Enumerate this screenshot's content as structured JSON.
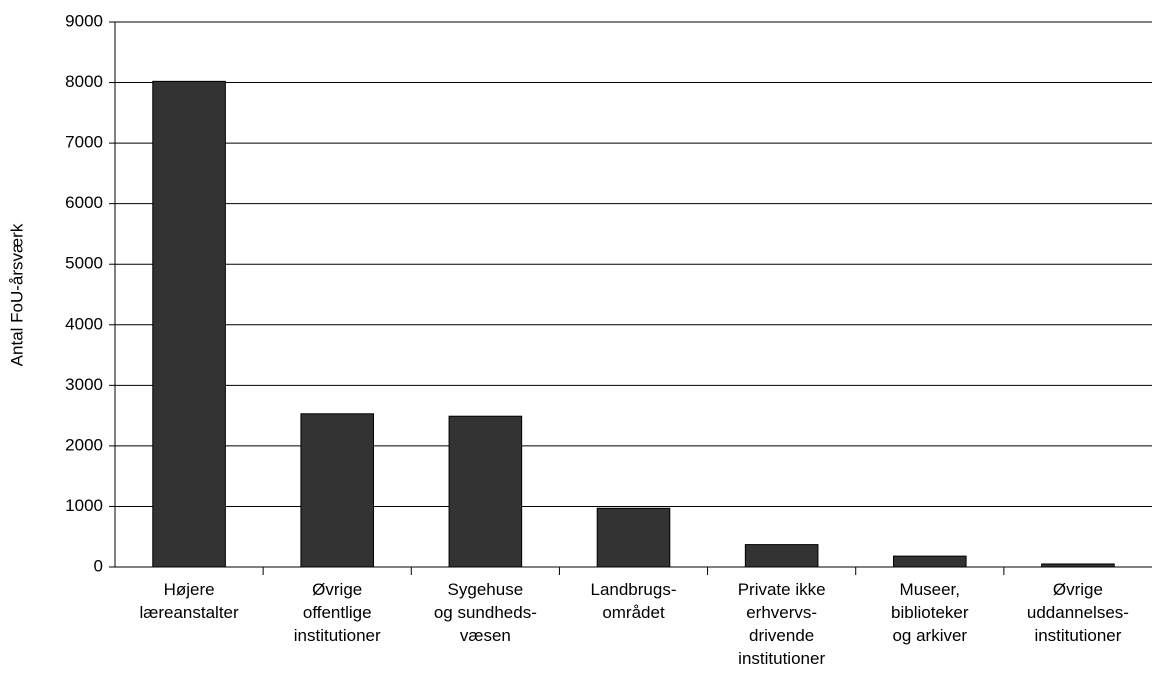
{
  "chart_data": {
    "type": "bar",
    "y_label": "Antal FoU-årsværk",
    "categories": [
      "Højere\nlæreanstalter",
      "Øvrige\noffentlige\ninstitutioner",
      "Sygehuse\nog sundheds-\nvæsen",
      "Landbrugs-\nområdet",
      "Private ikke\nerhvervs-\ndrivende\ninstitutioner",
      "Museer,\nbiblioteker\nog arkiver",
      "Øvrige\nuddannelses-\ninstitutioner"
    ],
    "values": [
      8020,
      2530,
      2490,
      970,
      370,
      180,
      50
    ],
    "color": "#333333",
    "ylim": [
      0,
      9000
    ],
    "yticks": [
      0,
      1000,
      2000,
      3000,
      4000,
      5000,
      6000,
      7000,
      8000,
      9000
    ],
    "grid": true
  }
}
